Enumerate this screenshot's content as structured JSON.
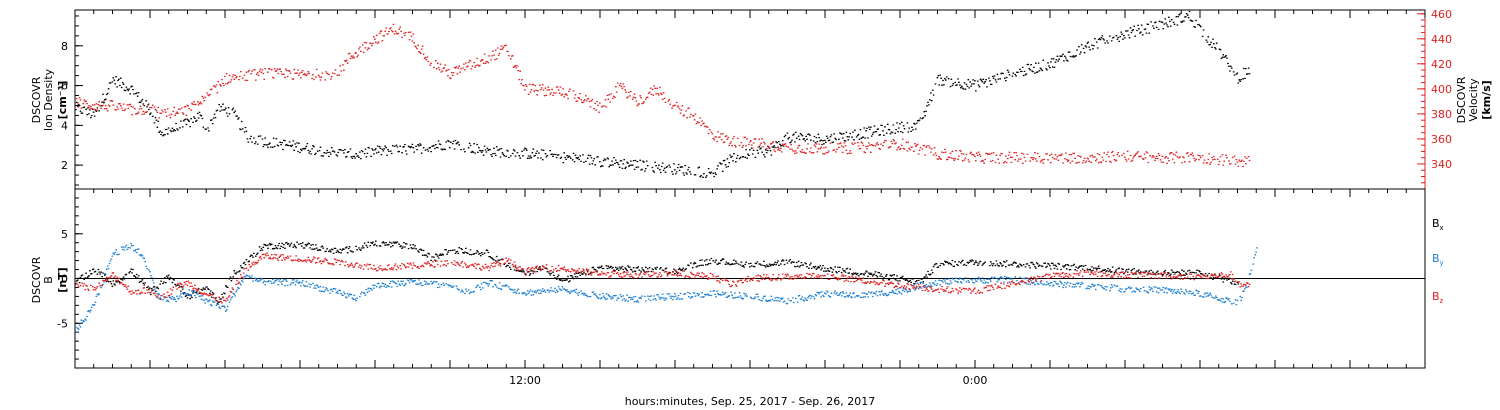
{
  "chart_data": [
    {
      "type": "scatter",
      "panel": "top",
      "ylabel_left": [
        "DSCOVR",
        "Ion Density",
        "[cm⁻³]"
      ],
      "ylabel_right": [
        "DSCOVR",
        "Velocity",
        "[km/s]"
      ],
      "ylim_left": [
        0.8,
        9.8
      ],
      "ylim_right": [
        320,
        463
      ],
      "yticks_left": [
        "2",
        "4",
        "6",
        "8"
      ],
      "yticks_right": [
        "340",
        "360",
        "380",
        "400",
        "420",
        "440",
        "460"
      ],
      "xlim_hours": [
        0,
        36
      ],
      "series": [
        {
          "axis": "left",
          "color": "#000000",
          "points": [
            [
              0,
              4.9
            ],
            [
              0.5,
              4.5
            ],
            [
              1,
              6.3
            ],
            [
              1.5,
              5.8
            ],
            [
              2,
              4.7
            ],
            [
              2.3,
              3.6
            ],
            [
              2.6,
              3.8
            ],
            [
              3,
              4.1
            ],
            [
              3.3,
              4.5
            ],
            [
              3.5,
              3.7
            ],
            [
              3.8,
              4.9
            ],
            [
              4.2,
              4.6
            ],
            [
              4.6,
              3.4
            ],
            [
              5,
              3.2
            ],
            [
              6,
              2.9
            ],
            [
              7,
              2.6
            ],
            [
              7.5,
              2.5
            ],
            [
              8,
              2.7
            ],
            [
              9,
              2.8
            ],
            [
              10,
              3.1
            ],
            [
              11,
              2.7
            ],
            [
              12,
              2.6
            ],
            [
              13,
              2.4
            ],
            [
              14,
              2.2
            ],
            [
              15,
              2.0
            ],
            [
              16,
              1.8
            ],
            [
              17,
              1.6
            ],
            [
              17.5,
              2.3
            ],
            [
              18,
              2.6
            ],
            [
              18.5,
              2.7
            ],
            [
              19,
              3.4
            ],
            [
              20,
              3.3
            ],
            [
              21,
              3.6
            ],
            [
              22,
              3.9
            ],
            [
              22.5,
              4.0
            ],
            [
              23,
              6.3
            ],
            [
              24,
              6.0
            ],
            [
              25,
              6.6
            ],
            [
              26,
              7.1
            ],
            [
              27,
              8.0
            ],
            [
              28,
              8.6
            ],
            [
              29,
              9.1
            ],
            [
              29.7,
              9.5
            ],
            [
              30,
              8.8
            ],
            [
              30.5,
              7.7
            ],
            [
              31,
              6.4
            ],
            [
              31.3,
              6.8
            ]
          ]
        },
        {
          "axis": "right",
          "color": "#e02020",
          "points": [
            [
              0,
              389
            ],
            [
              0.5,
              387
            ],
            [
              1,
              386
            ],
            [
              1.5,
              383
            ],
            [
              2,
              384
            ],
            [
              2.3,
              380
            ],
            [
              2.7,
              381
            ],
            [
              3,
              383
            ],
            [
              3.5,
              393
            ],
            [
              4,
              408
            ],
            [
              5,
              412
            ],
            [
              6,
              411
            ],
            [
              7,
              412
            ],
            [
              7.3,
              425
            ],
            [
              8,
              440
            ],
            [
              8.5,
              448
            ],
            [
              9,
              440
            ],
            [
              9.5,
              421
            ],
            [
              10,
              412
            ],
            [
              11,
              425
            ],
            [
              11.5,
              432
            ],
            [
              12,
              400
            ],
            [
              13,
              398
            ],
            [
              13.5,
              392
            ],
            [
              14,
              384
            ],
            [
              14.5,
              402
            ],
            [
              15,
              390
            ],
            [
              15.5,
              400
            ],
            [
              16,
              385
            ],
            [
              16.5,
              378
            ],
            [
              17,
              363
            ],
            [
              17.5,
              358
            ],
            [
              18,
              357
            ],
            [
              19,
              353
            ],
            [
              20,
              352
            ],
            [
              21,
              353
            ],
            [
              22,
              356
            ],
            [
              23,
              348
            ],
            [
              24,
              345
            ],
            [
              25,
              345
            ],
            [
              26,
              345
            ],
            [
              27,
              345
            ],
            [
              28,
              346
            ],
            [
              29,
              345
            ],
            [
              30,
              345
            ],
            [
              31,
              342
            ],
            [
              31.3,
              342
            ]
          ]
        }
      ]
    },
    {
      "type": "scatter",
      "panel": "bottom",
      "ylabel": [
        "DSCOVR",
        "B",
        "[nT]"
      ],
      "ylim": [
        -10,
        10
      ],
      "yticks": [
        "-5",
        "0",
        "5"
      ],
      "xlim_hours": [
        0,
        36
      ],
      "xticks": [
        "12:00",
        "0:00"
      ],
      "xlabel": "hours:minutes, Sep. 25, 2017 - Sep. 26, 2017",
      "legend": {
        "placement": "right"
      },
      "series": [
        {
          "name": "B_x",
          "name_parts": [
            "B",
            "x"
          ],
          "color": "#000000",
          "points": [
            [
              0,
              -0.5
            ],
            [
              0.5,
              1.0
            ],
            [
              1,
              -0.6
            ],
            [
              1.5,
              0.8
            ],
            [
              2,
              -1.5
            ],
            [
              2.5,
              0.2
            ],
            [
              3,
              -2.0
            ],
            [
              3.5,
              -1.0
            ],
            [
              3.8,
              -2.8
            ],
            [
              4.2,
              0.5
            ],
            [
              4.5,
              1.6
            ],
            [
              5,
              3.6
            ],
            [
              6,
              3.8
            ],
            [
              7,
              3.0
            ],
            [
              7.5,
              3.4
            ],
            [
              8,
              3.9
            ],
            [
              9,
              3.6
            ],
            [
              9.5,
              2.2
            ],
            [
              10,
              3.2
            ],
            [
              11,
              2.8
            ],
            [
              11.5,
              1.5
            ],
            [
              12,
              0.6
            ],
            [
              12.5,
              1.2
            ],
            [
              13,
              -0.3
            ],
            [
              13.5,
              0.5
            ],
            [
              14,
              1.2
            ],
            [
              15,
              1.0
            ],
            [
              16,
              0.8
            ],
            [
              16.5,
              1.6
            ],
            [
              17,
              2.0
            ],
            [
              18,
              1.5
            ],
            [
              19,
              1.8
            ],
            [
              20,
              1.1
            ],
            [
              21,
              0.6
            ],
            [
              22,
              0.0
            ],
            [
              22.5,
              -0.5
            ],
            [
              23,
              1.6
            ],
            [
              24,
              1.8
            ],
            [
              25,
              1.6
            ],
            [
              26,
              1.4
            ],
            [
              27,
              1.2
            ],
            [
              28,
              0.8
            ],
            [
              29,
              0.6
            ],
            [
              30,
              0.6
            ],
            [
              31,
              -0.5
            ]
          ]
        },
        {
          "name": "B_y",
          "name_parts": [
            "B",
            "y"
          ],
          "color": "#1b7fd4",
          "points": [
            [
              0,
              -5.8
            ],
            [
              0.3,
              -4.2
            ],
            [
              0.6,
              -1.8
            ],
            [
              1,
              2.8
            ],
            [
              1.5,
              3.6
            ],
            [
              1.8,
              2.5
            ],
            [
              2.2,
              -2.0
            ],
            [
              2.6,
              -2.4
            ],
            [
              3,
              -1.5
            ],
            [
              3.5,
              -2.5
            ],
            [
              4,
              -3.4
            ],
            [
              4.5,
              0.2
            ],
            [
              5,
              -0.4
            ],
            [
              6,
              -0.5
            ],
            [
              7,
              -1.6
            ],
            [
              7.5,
              -2.2
            ],
            [
              8,
              -0.8
            ],
            [
              9,
              -0.4
            ],
            [
              10,
              -0.8
            ],
            [
              10.5,
              -1.5
            ],
            [
              11,
              -0.5
            ],
            [
              12,
              -1.6
            ],
            [
              13,
              -1.2
            ],
            [
              14,
              -2.0
            ],
            [
              15,
              -2.3
            ],
            [
              16,
              -2.0
            ],
            [
              17,
              -1.7
            ],
            [
              18,
              -2.0
            ],
            [
              19,
              -2.5
            ],
            [
              20,
              -1.7
            ],
            [
              21,
              -1.9
            ],
            [
              22,
              -1.4
            ],
            [
              22.5,
              -0.8
            ],
            [
              23,
              -0.4
            ],
            [
              24,
              -0.2
            ],
            [
              25,
              -0.1
            ],
            [
              26,
              -0.6
            ],
            [
              27,
              -0.8
            ],
            [
              28,
              -1.2
            ],
            [
              29,
              -1.3
            ],
            [
              30,
              -1.7
            ],
            [
              31,
              -2.8
            ],
            [
              31.2,
              -1.0
            ],
            [
              31.5,
              3.3
            ]
          ]
        },
        {
          "name": "B_z",
          "name_parts": [
            "B",
            "z"
          ],
          "color": "#e02020",
          "points": [
            [
              0,
              -0.6
            ],
            [
              0.5,
              -1.2
            ],
            [
              1,
              0.4
            ],
            [
              1.5,
              -1.5
            ],
            [
              2,
              -1.3
            ],
            [
              2.3,
              -2.2
            ],
            [
              2.7,
              -0.9
            ],
            [
              3,
              -0.5
            ],
            [
              3.5,
              -1.8
            ],
            [
              4,
              -2.6
            ],
            [
              4.5,
              0.8
            ],
            [
              5,
              2.5
            ],
            [
              6,
              2.2
            ],
            [
              7,
              1.8
            ],
            [
              8,
              1.2
            ],
            [
              9,
              1.4
            ],
            [
              10,
              1.8
            ],
            [
              11,
              1.2
            ],
            [
              11.5,
              2.0
            ],
            [
              12,
              0.8
            ],
            [
              12.5,
              1.2
            ],
            [
              13,
              1.1
            ],
            [
              14,
              0.5
            ],
            [
              15,
              0.4
            ],
            [
              16,
              0.6
            ],
            [
              17,
              0.2
            ],
            [
              17.5,
              -0.7
            ],
            [
              18,
              0.0
            ],
            [
              19,
              0.2
            ],
            [
              20,
              0.3
            ],
            [
              21,
              -0.2
            ],
            [
              22,
              -0.8
            ],
            [
              23,
              -1.2
            ],
            [
              24,
              -1.4
            ],
            [
              25,
              -0.6
            ],
            [
              26,
              0.3
            ],
            [
              27,
              0.6
            ],
            [
              28,
              0.4
            ],
            [
              29,
              0.3
            ],
            [
              30,
              0.2
            ],
            [
              30.8,
              0.4
            ],
            [
              31,
              -0.7
            ],
            [
              31.3,
              -0.8
            ]
          ]
        }
      ]
    }
  ]
}
